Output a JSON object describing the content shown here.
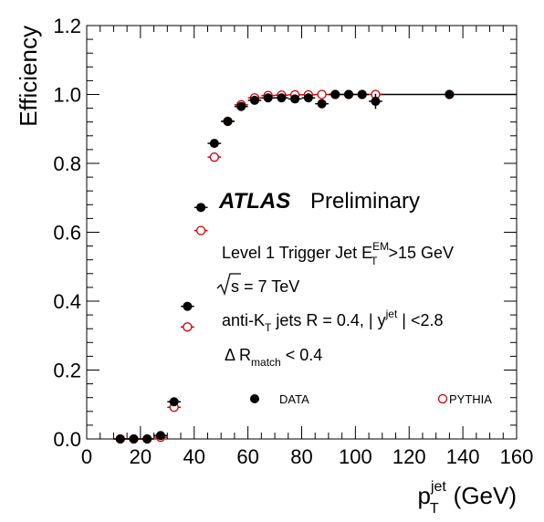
{
  "chart_data": {
    "type": "scatter",
    "xlabel": {
      "main": "p",
      "sup": "jet",
      "sub": "T",
      "unit": "(GeV)"
    },
    "ylabel": "Efficiency",
    "xlim": [
      0,
      160
    ],
    "ylim": [
      0,
      1.2
    ],
    "x_ticks": [
      "0",
      "20",
      "40",
      "60",
      "80",
      "100",
      "120",
      "140",
      "160"
    ],
    "y_ticks": [
      "0.0",
      "0.2",
      "0.4",
      "0.6",
      "0.8",
      "1.0",
      "1.2"
    ],
    "grid": false,
    "series": [
      {
        "name": "DATA",
        "marker": "filled-circle",
        "color": "#000000",
        "x": [
          12.5,
          17.5,
          22.5,
          27.5,
          32.5,
          37.5,
          42.5,
          47.5,
          52.5,
          57.5,
          62.5,
          67.5,
          72.5,
          77.5,
          82.5,
          87.5,
          92.5,
          97.5,
          102.5,
          107.5,
          135
        ],
        "xerr": [
          2.5,
          2.5,
          2.5,
          2.5,
          2.5,
          2.5,
          2.5,
          2.5,
          2.5,
          2.5,
          2.5,
          2.5,
          2.5,
          2.5,
          2.5,
          2.5,
          2.5,
          2.5,
          2.5,
          2.5,
          0
        ],
        "y": [
          0.0,
          0.0,
          0.0,
          0.01,
          0.108,
          0.385,
          0.672,
          0.858,
          0.922,
          0.965,
          0.983,
          0.99,
          0.99,
          0.987,
          0.99,
          0.973,
          1.0,
          1.0,
          1.0,
          0.98,
          1.0
        ],
        "yerr": [
          0,
          0,
          0,
          0.005,
          0.008,
          0.008,
          0.006,
          0.006,
          0.005,
          0.005,
          0.005,
          0.005,
          0.005,
          0.007,
          0.008,
          0.012,
          0.008,
          0.01,
          0.01,
          0.022,
          0
        ]
      },
      {
        "name": "PYTHIA",
        "marker": "open-circle",
        "color": "#cc0000",
        "x": [
          12.5,
          17.5,
          22.5,
          27.5,
          32.5,
          37.5,
          42.5,
          47.5,
          52.5,
          57.5,
          62.5,
          67.5,
          72.5,
          77.5,
          82.5,
          87.5,
          92.5,
          97.5,
          102.5,
          107.5,
          135
        ],
        "xerr": [
          2.5,
          2.5,
          2.5,
          2.5,
          2.5,
          2.5,
          2.5,
          2.5,
          2.5,
          2.5,
          2.5,
          2.5,
          2.5,
          2.5,
          2.5,
          2.5,
          2.5,
          2.5,
          2.5,
          2.5,
          0
        ],
        "y": [
          0.0,
          0.0,
          0.0,
          0.005,
          0.092,
          0.325,
          0.605,
          0.818,
          0.922,
          0.97,
          0.99,
          0.997,
          0.998,
          0.999,
          0.999,
          1.0,
          1.0,
          1.0,
          1.0,
          1.0,
          1.0
        ]
      }
    ],
    "plateau_line": {
      "y": 1.0,
      "x_from": 107.5,
      "x_to": 160
    },
    "annotations": {
      "atlas": "ATLAS",
      "preliminary": "Preliminary",
      "trigger": {
        "main": "Level 1 Trigger Jet E",
        "sub": "T",
        "sup": "EM",
        "rest": ">15 GeV"
      },
      "sqrt_s": {
        "root": "s",
        "rest": " = 7 TeV"
      },
      "jets": {
        "part1": "anti-K",
        "sub": "T",
        "part2": " jets R = 0.4, | y",
        "sup": "jet",
        "part3": " | <2.8"
      },
      "delta_r": {
        "main": "Δ R",
        "sub": "match",
        "rest": " < 0.4"
      }
    },
    "legend": [
      {
        "label": "DATA",
        "marker": "filled-circle"
      },
      {
        "label": "PYTHIA",
        "marker": "open-circle"
      }
    ]
  }
}
